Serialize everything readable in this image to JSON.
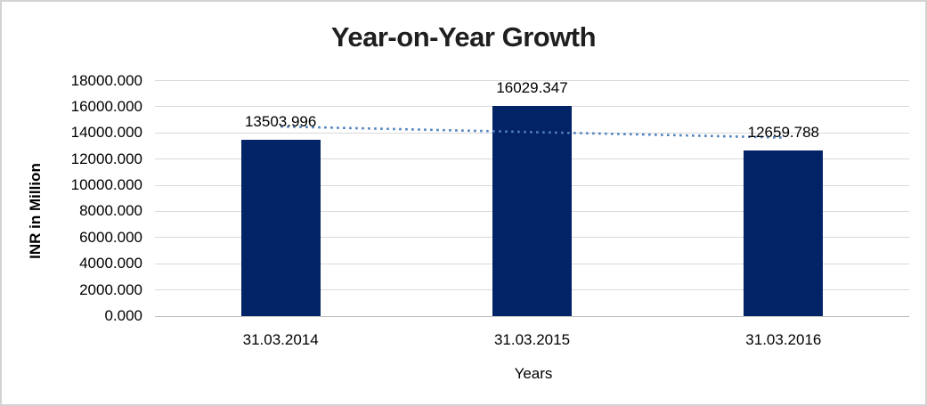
{
  "chart_data": {
    "type": "bar",
    "title": "Year-on-Year Growth",
    "xlabel": "Years",
    "ylabel": "INR in Million",
    "categories": [
      "31.03.2014",
      "31.03.2015",
      "31.03.2016"
    ],
    "values": [
      13503.996,
      16029.347,
      12659.788
    ],
    "value_labels": [
      "13503.996",
      "16029.347",
      "12659.788"
    ],
    "ylim": [
      0,
      18000
    ],
    "ytick_step": 2000,
    "ytick_labels": [
      "18000.000",
      "16000.000",
      "14000.000",
      "12000.000",
      "10000.000",
      "8000.000",
      "6000.000",
      "4000.000",
      "2000.000",
      "0.000"
    ],
    "grid": true,
    "legend_position": "none",
    "trendline": {
      "type": "linear",
      "style": "dotted",
      "endpoint_values": [
        14486.481,
        13642.273
      ]
    },
    "colors": {
      "bar": "#022366",
      "gridline": "#d9d9d9",
      "axis_line": "#bfbfbf",
      "trendline": "#4f81bd",
      "title_text": "#1f1f1f",
      "label_text": "#000000",
      "frame_border": "#d3d3d3",
      "background": "#ffffff"
    }
  }
}
